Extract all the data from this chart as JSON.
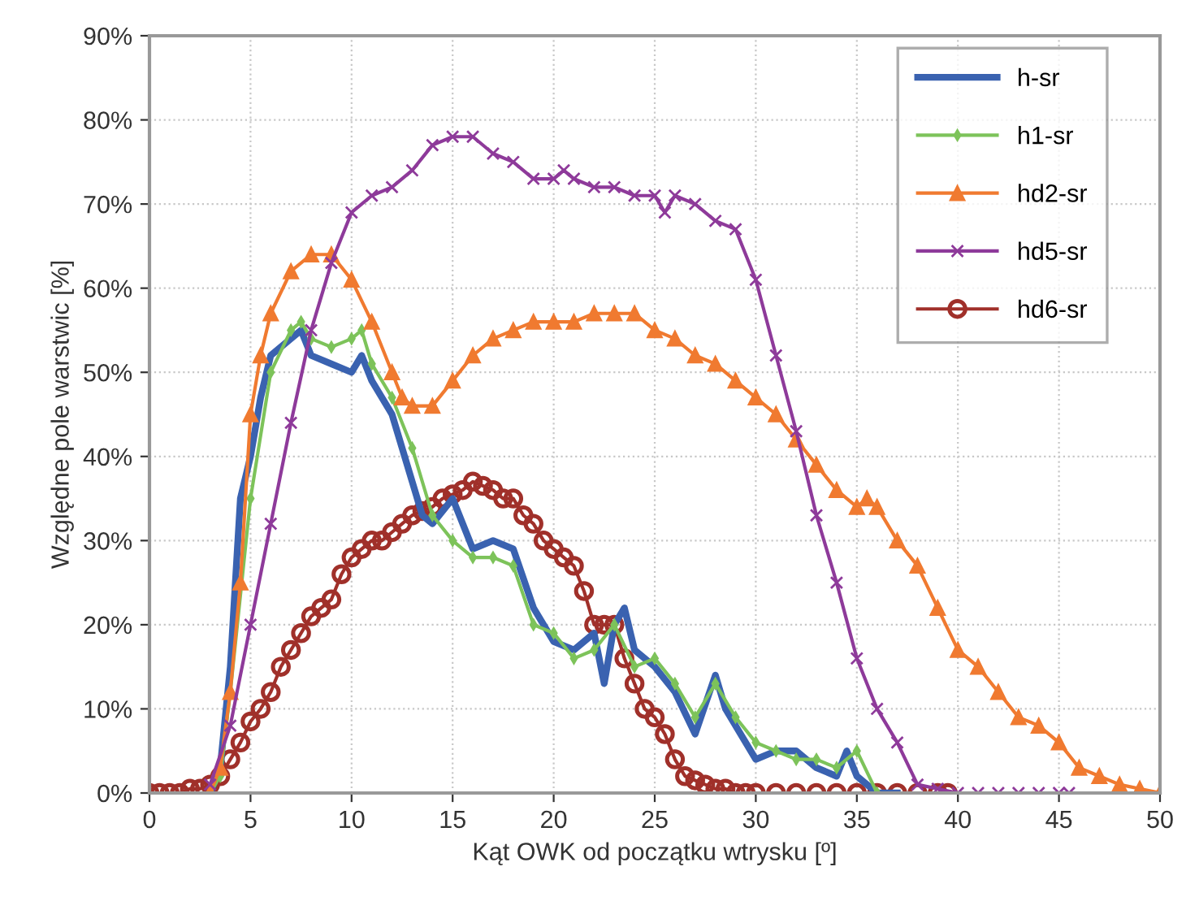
{
  "chart_data": {
    "type": "line",
    "xlabel": "Kąt OWK od początku wtrysku [º]",
    "ylabel": "Względne pole warstwic [%]",
    "xlim": [
      0,
      50
    ],
    "xticks": [
      0,
      5,
      10,
      15,
      20,
      25,
      30,
      35,
      40,
      45,
      50
    ],
    "ylim": [
      0,
      90
    ],
    "yticks": [
      {
        "value": 0,
        "label": "0%"
      },
      {
        "value": 10,
        "label": "10%"
      },
      {
        "value": 20,
        "label": "20%"
      },
      {
        "value": 30,
        "label": "30%"
      },
      {
        "value": 40,
        "label": "40%"
      },
      {
        "value": 50,
        "label": "50%"
      },
      {
        "value": 60,
        "label": "60%"
      },
      {
        "value": 70,
        "label": "70%"
      },
      {
        "value": 80,
        "label": "80%"
      },
      {
        "value": 90,
        "label": "90%"
      }
    ],
    "grid": true,
    "legend": "top right",
    "series": [
      {
        "name": "h-sr",
        "color": "#3a62b0",
        "marker": "none",
        "x": [
          3,
          3.5,
          4,
          4.5,
          5,
          5.5,
          6,
          7,
          7.5,
          8,
          9,
          10,
          10.5,
          11,
          12,
          13,
          13.5,
          14,
          15,
          16,
          17,
          18,
          19,
          20,
          21,
          22,
          22.5,
          23,
          23.5,
          24,
          25,
          26,
          27,
          28,
          28.5,
          29,
          30,
          31,
          32,
          33,
          34,
          34.5,
          35,
          36,
          37
        ],
        "values": [
          0,
          3,
          15,
          35,
          40,
          47,
          52,
          54,
          55,
          52,
          51,
          50,
          52,
          49,
          45,
          37,
          33,
          32,
          35,
          29,
          30,
          29,
          22,
          18,
          17,
          19,
          13,
          20,
          22,
          17,
          15,
          12,
          7,
          14,
          10,
          8,
          4,
          5,
          5,
          3,
          2,
          5,
          2,
          0,
          0
        ]
      },
      {
        "name": "h1-sr",
        "color": "#7dc35a",
        "marker": "diamond",
        "x": [
          3,
          3.5,
          4,
          5,
          6,
          7,
          7.5,
          8,
          9,
          10,
          10.5,
          11,
          12,
          13,
          14,
          15,
          16,
          17,
          18,
          19,
          20,
          21,
          22,
          23,
          24,
          25,
          26,
          27,
          28,
          29,
          30,
          31,
          32,
          33,
          34,
          35,
          36
        ],
        "values": [
          0,
          2,
          12,
          35,
          50,
          55,
          56,
          54,
          53,
          54,
          55,
          51,
          47,
          41,
          33,
          30,
          28,
          28,
          27,
          20,
          19,
          16,
          17,
          20,
          15,
          16,
          13,
          9,
          13,
          9,
          6,
          5,
          4,
          4,
          3,
          5,
          0
        ]
      },
      {
        "name": "hd2-sr",
        "color": "#f07a30",
        "marker": "triangle",
        "x": [
          3,
          3.5,
          4,
          4.5,
          5,
          5.5,
          6,
          7,
          8,
          9,
          10,
          11,
          12,
          12.5,
          13,
          14,
          15,
          16,
          17,
          18,
          19,
          20,
          21,
          22,
          23,
          24,
          25,
          26,
          27,
          28,
          29,
          30,
          31,
          32,
          33,
          34,
          35,
          35.5,
          36,
          37,
          38,
          39,
          40,
          41,
          42,
          43,
          44,
          45,
          46,
          47,
          48,
          49,
          50
        ],
        "values": [
          0,
          3,
          12,
          25,
          45,
          52,
          57,
          62,
          64,
          64,
          61,
          56,
          50,
          47,
          46,
          46,
          49,
          52,
          54,
          55,
          56,
          56,
          56,
          57,
          57,
          57,
          55,
          54,
          52,
          51,
          49,
          47,
          45,
          42,
          39,
          36,
          34,
          35,
          34,
          30,
          27,
          22,
          17,
          15,
          12,
          9,
          8,
          6,
          3,
          2,
          1,
          0.5,
          0
        ]
      },
      {
        "name": "hd5-sr",
        "color": "#8e3a9a",
        "marker": "cross",
        "x": [
          3,
          4,
          5,
          6,
          7,
          8,
          9,
          10,
          11,
          12,
          13,
          14,
          15,
          16,
          17,
          18,
          19,
          20,
          20.5,
          21,
          22,
          23,
          24,
          25,
          25.5,
          26,
          27,
          28,
          29,
          30,
          31,
          32,
          33,
          34,
          35,
          36,
          37,
          38,
          39,
          40,
          41,
          42,
          43,
          44,
          45,
          45.5
        ],
        "values": [
          1,
          8,
          20,
          32,
          44,
          55,
          63,
          69,
          71,
          72,
          74,
          77,
          78,
          78,
          76,
          75,
          73,
          73,
          74,
          73,
          72,
          72,
          71,
          71,
          69,
          71,
          70,
          68,
          67,
          61,
          52,
          43,
          33,
          25,
          16,
          10,
          6,
          1,
          0.5,
          0,
          0,
          0,
          0,
          0,
          0,
          0
        ]
      },
      {
        "name": "hd6-sr",
        "color": "#a0302a",
        "marker": "circle",
        "x": [
          0,
          0.5,
          1,
          1.5,
          2,
          2.5,
          3,
          3.5,
          4,
          4.5,
          5,
          5.5,
          6,
          6.5,
          7,
          7.5,
          8,
          8.5,
          9,
          9.5,
          10,
          10.5,
          11,
          11.5,
          12,
          12.5,
          13,
          13.5,
          14,
          14.5,
          15,
          15.5,
          16,
          16.5,
          17,
          17.5,
          18,
          18.5,
          19,
          19.5,
          20,
          20.5,
          21,
          21.5,
          22,
          22.5,
          23,
          23.5,
          24,
          24.5,
          25,
          25.5,
          26,
          26.5,
          27,
          27.5,
          28,
          28.5,
          29,
          29.5,
          30,
          31,
          32,
          33,
          34,
          35,
          36,
          37,
          38,
          39,
          39.5
        ],
        "values": [
          0,
          0,
          0,
          0,
          0.5,
          0.5,
          1,
          2,
          4,
          6,
          8.5,
          10,
          12,
          15,
          17,
          19,
          21,
          22,
          23,
          26,
          28,
          29,
          30,
          30,
          31,
          32,
          33,
          33.5,
          34,
          35,
          35.5,
          36,
          37,
          36.5,
          36,
          35,
          35,
          33,
          32,
          30,
          29,
          28,
          27,
          24,
          20,
          20,
          20,
          16,
          13,
          10,
          9,
          7,
          4,
          2,
          1.5,
          1,
          0.5,
          0.5,
          0,
          0,
          0,
          0,
          0,
          0,
          0,
          0,
          0,
          0,
          0,
          0,
          0
        ]
      }
    ]
  }
}
